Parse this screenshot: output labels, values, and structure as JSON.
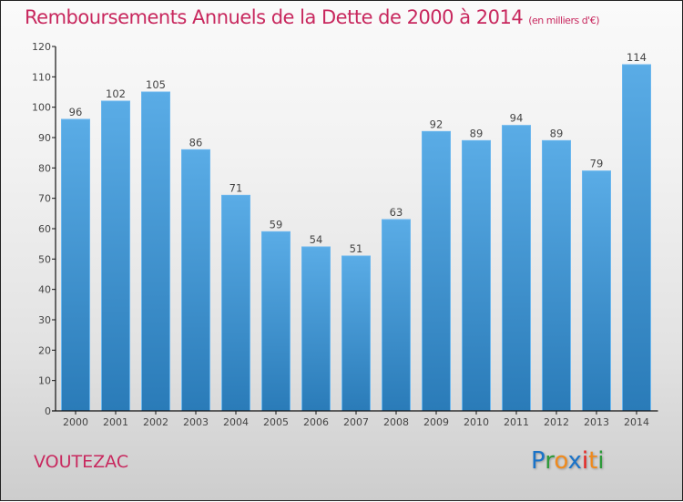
{
  "header": {
    "title": "Remboursements Annuels de la Dette de 2000 à 2014",
    "unit": "(en milliers d'€)"
  },
  "footer": {
    "city": "VOUTEZAC",
    "logo": {
      "letters": [
        "P",
        "r",
        "o",
        "x",
        "i",
        "t",
        "i"
      ],
      "colors": [
        "#1a73c8",
        "#2e9a3a",
        "#f08a1c",
        "#1a73c8",
        "#e8231f",
        "#f08a1c",
        "#2e9a3a"
      ]
    }
  },
  "chart_data": {
    "type": "bar",
    "title": "Remboursements Annuels de la Dette de 2000 à 2014",
    "subtitle": "(en milliers d'€)",
    "xlabel": "",
    "ylabel": "",
    "categories": [
      "2000",
      "2001",
      "2002",
      "2003",
      "2004",
      "2005",
      "2006",
      "2007",
      "2008",
      "2009",
      "2010",
      "2011",
      "2012",
      "2013",
      "2014"
    ],
    "values": [
      96,
      102,
      105,
      86,
      71,
      59,
      54,
      51,
      63,
      92,
      89,
      94,
      89,
      79,
      114
    ],
    "ylim": [
      0,
      120
    ],
    "yticks": [
      0,
      10,
      20,
      30,
      40,
      50,
      60,
      70,
      80,
      90,
      100,
      110,
      120
    ],
    "grid": false,
    "legend": "none",
    "bar_color": "#4a9fe0"
  }
}
